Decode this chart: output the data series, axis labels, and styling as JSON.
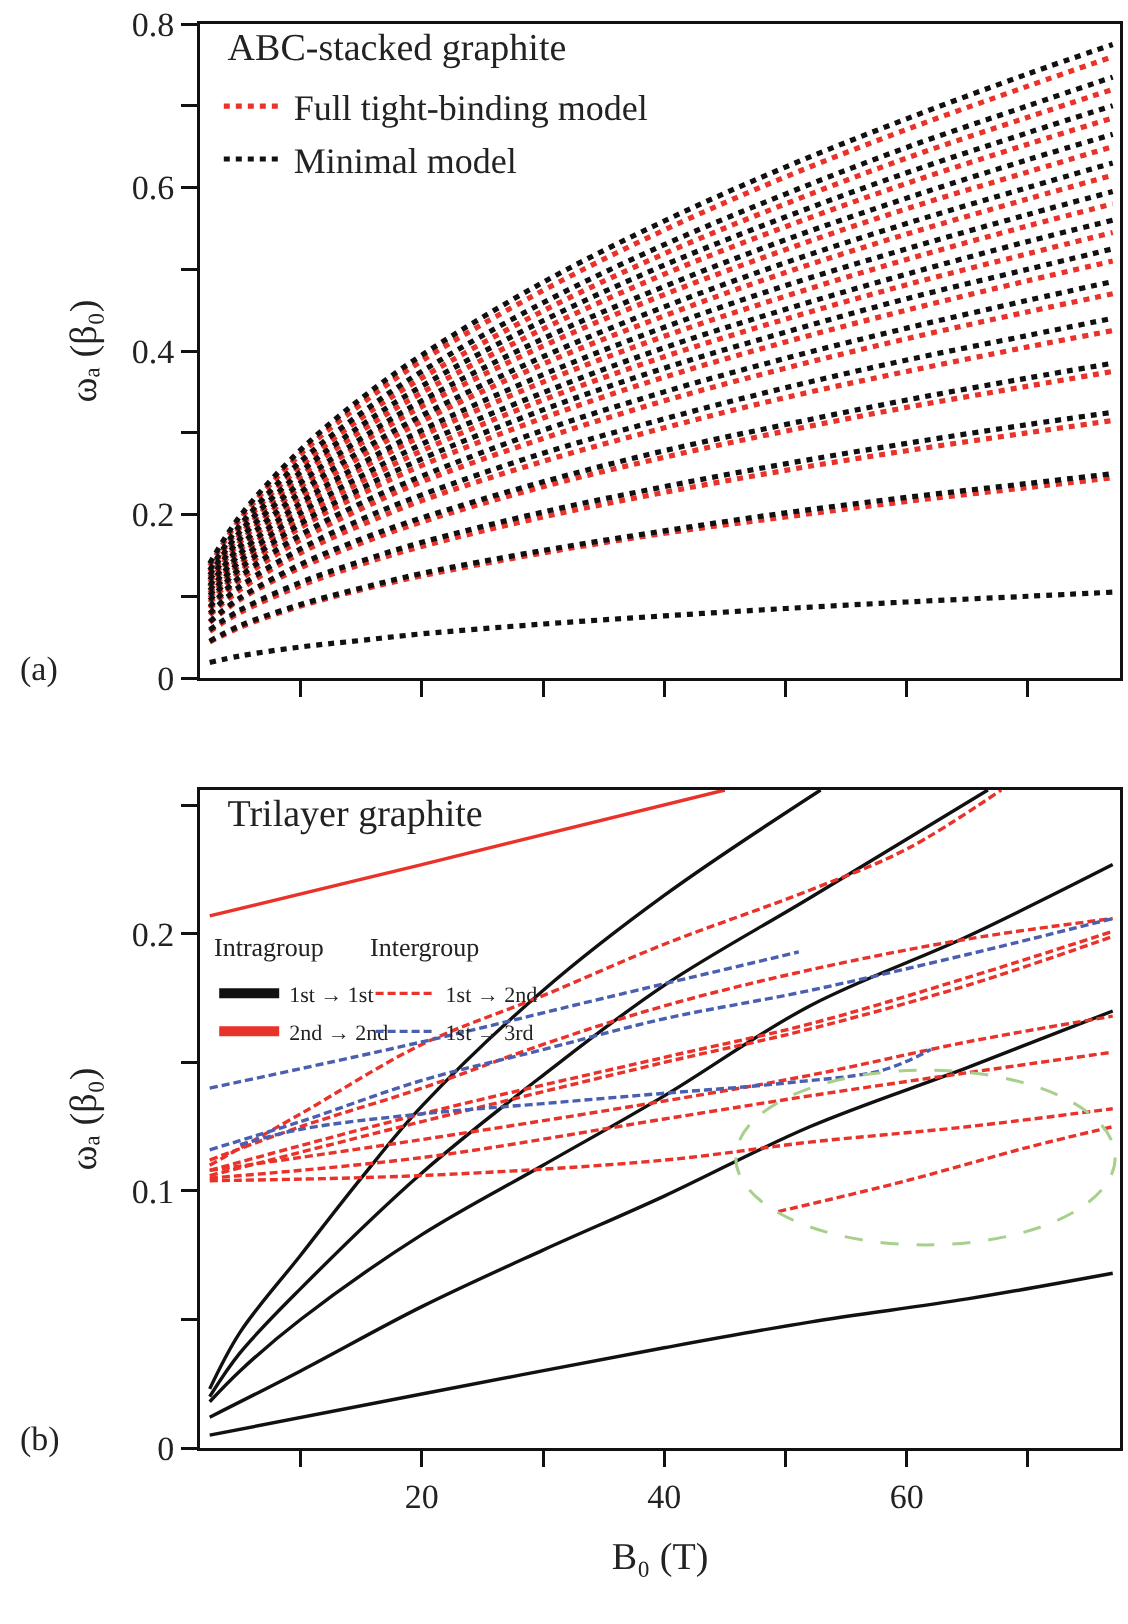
{
  "chart_data": [
    {
      "type": "line",
      "title": "ABC-stacked graphite",
      "ylabel": "ωₐ (β₀)",
      "annotations": [
        "(a)"
      ],
      "line_style": "dotted",
      "legend": "top left",
      "tick_labels": "y",
      "xlim": [
        1.7,
        77.6
      ],
      "xticks": [
        {
          "value": 10,
          "label": null
        },
        {
          "value": 20,
          "label": null
        },
        {
          "value": 30,
          "label": null
        },
        {
          "value": 40,
          "label": null
        },
        {
          "value": 50,
          "label": null
        },
        {
          "value": 60,
          "label": null
        },
        {
          "value": 70,
          "label": null
        }
      ],
      "ylim": [
        0,
        0.8
      ],
      "yticks": [
        0,
        {
          "value": 0.1,
          "label": null
        },
        0.2,
        {
          "value": 0.3,
          "label": null
        },
        0.4,
        {
          "value": 0.5,
          "label": null
        },
        0.6,
        {
          "value": 0.7,
          "label": null
        },
        0.8
      ],
      "x": [
        2.5,
        5,
        10,
        15,
        20,
        30,
        40,
        50,
        60,
        70,
        77
      ],
      "series": [
        {
          "name": "Full tight-binding model",
          "color": "#e8322a",
          "values": [
            0.044,
            0.062,
            0.088,
            0.108,
            0.125,
            0.153,
            0.177,
            0.197,
            0.216,
            0.233,
            0.245
          ]
        },
        {
          "color": "#e8322a",
          "values": [
            0.057,
            0.08,
            0.113,
            0.139,
            0.161,
            0.197,
            0.227,
            0.254,
            0.278,
            0.3,
            0.315
          ]
        },
        {
          "color": "#e8322a",
          "values": [
            0.068,
            0.096,
            0.135,
            0.165,
            0.191,
            0.234,
            0.27,
            0.302,
            0.331,
            0.357,
            0.375
          ]
        },
        {
          "color": "#e8322a",
          "values": [
            0.077,
            0.108,
            0.153,
            0.187,
            0.217,
            0.265,
            0.306,
            0.343,
            0.375,
            0.405,
            0.425
          ]
        },
        {
          "color": "#e8322a",
          "values": [
            0.085,
            0.12,
            0.169,
            0.207,
            0.24,
            0.293,
            0.339,
            0.379,
            0.415,
            0.448,
            0.47
          ]
        },
        {
          "color": "#e8322a",
          "values": [
            0.092,
            0.13,
            0.184,
            0.225,
            0.26,
            0.318,
            0.368,
            0.411,
            0.45,
            0.486,
            0.51
          ]
        },
        {
          "color": "#e8322a",
          "values": [
            0.098,
            0.139,
            0.196,
            0.24,
            0.278,
            0.34,
            0.393,
            0.439,
            0.481,
            0.519,
            0.545
          ]
        },
        {
          "color": "#e8322a",
          "values": [
            0.104,
            0.148,
            0.209,
            0.256,
            0.296,
            0.362,
            0.418,
            0.467,
            0.512,
            0.553,
            0.58
          ]
        },
        {
          "color": "#e8322a",
          "values": [
            0.111,
            0.157,
            0.221,
            0.271,
            0.314,
            0.384,
            0.443,
            0.496,
            0.543,
            0.586,
            0.615
          ]
        },
        {
          "color": "#e8322a",
          "values": [
            0.117,
            0.166,
            0.234,
            0.287,
            0.332,
            0.406,
            0.469,
            0.524,
            0.574,
            0.619,
            0.65
          ]
        },
        {
          "color": "#e8322a",
          "values": [
            0.123,
            0.175,
            0.247,
            0.302,
            0.349,
            0.427,
            0.494,
            0.552,
            0.605,
            0.653,
            0.685
          ]
        },
        {
          "color": "#e8322a",
          "values": [
            0.13,
            0.184,
            0.259,
            0.318,
            0.367,
            0.449,
            0.519,
            0.58,
            0.636,
            0.686,
            0.72
          ]
        },
        {
          "color": "#e8322a",
          "values": [
            0.137,
            0.194,
            0.274,
            0.335,
            0.388,
            0.474,
            0.548,
            0.613,
            0.671,
            0.724,
            0.76
          ]
        },
        {
          "name": "Minimal model",
          "color": "#111111",
          "values": [
            0.019,
            0.027,
            0.038,
            0.046,
            0.054,
            0.066,
            0.076,
            0.085,
            0.093,
            0.1,
            0.105
          ]
        },
        {
          "color": "#111111",
          "values": [
            0.045,
            0.064,
            0.09,
            0.11,
            0.128,
            0.156,
            0.18,
            0.202,
            0.221,
            0.238,
            0.25
          ]
        },
        {
          "color": "#111111",
          "values": [
            0.059,
            0.083,
            0.117,
            0.143,
            0.166,
            0.203,
            0.234,
            0.262,
            0.287,
            0.31,
            0.325
          ]
        },
        {
          "color": "#111111",
          "values": [
            0.069,
            0.098,
            0.139,
            0.17,
            0.196,
            0.24,
            0.278,
            0.31,
            0.34,
            0.367,
            0.385
          ]
        },
        {
          "color": "#111111",
          "values": [
            0.079,
            0.112,
            0.158,
            0.194,
            0.224,
            0.275,
            0.317,
            0.355,
            0.389,
            0.419,
            0.44
          ]
        },
        {
          "color": "#111111",
          "values": [
            0.087,
            0.124,
            0.175,
            0.214,
            0.247,
            0.303,
            0.35,
            0.391,
            0.428,
            0.462,
            0.485
          ]
        },
        {
          "color": "#111111",
          "values": [
            0.095,
            0.134,
            0.189,
            0.232,
            0.268,
            0.328,
            0.379,
            0.423,
            0.464,
            0.5,
            0.525
          ]
        },
        {
          "color": "#111111",
          "values": [
            0.101,
            0.143,
            0.202,
            0.247,
            0.286,
            0.349,
            0.404,
            0.451,
            0.494,
            0.534,
            0.56
          ]
        },
        {
          "color": "#111111",
          "values": [
            0.107,
            0.152,
            0.214,
            0.262,
            0.303,
            0.371,
            0.429,
            0.48,
            0.525,
            0.567,
            0.595
          ]
        },
        {
          "color": "#111111",
          "values": [
            0.113,
            0.161,
            0.227,
            0.278,
            0.321,
            0.393,
            0.454,
            0.508,
            0.556,
            0.6,
            0.63
          ]
        },
        {
          "color": "#111111",
          "values": [
            0.12,
            0.17,
            0.239,
            0.293,
            0.339,
            0.415,
            0.479,
            0.536,
            0.587,
            0.634,
            0.665
          ]
        },
        {
          "color": "#111111",
          "values": [
            0.126,
            0.179,
            0.252,
            0.309,
            0.357,
            0.437,
            0.505,
            0.564,
            0.618,
            0.667,
            0.7
          ]
        },
        {
          "color": "#111111",
          "values": [
            0.132,
            0.187,
            0.265,
            0.324,
            0.375,
            0.459,
            0.53,
            0.592,
            0.649,
            0.7,
            0.735
          ]
        },
        {
          "color": "#111111",
          "values": [
            0.14,
            0.198,
            0.279,
            0.342,
            0.395,
            0.484,
            0.559,
            0.625,
            0.684,
            0.739,
            0.775
          ]
        }
      ]
    },
    {
      "type": "line",
      "title": "Trilayer graphite",
      "xlabel": "B₀ (T)",
      "ylabel": "ωₐ (β₀)",
      "annotations": [
        "(b)",
        "Intragroup",
        "Intergroup"
      ],
      "legend": "top left",
      "xlim": [
        1.7,
        77.6
      ],
      "xticks": [
        {
          "value": 10,
          "label": null
        },
        20,
        {
          "value": 30,
          "label": null
        },
        40,
        {
          "value": 50,
          "label": null
        },
        60,
        {
          "value": 70,
          "label": null
        }
      ],
      "ylim": [
        0,
        0.256
      ],
      "yticks": [
        0,
        {
          "value": 0.05,
          "label": null
        },
        0.1,
        {
          "value": 0.15,
          "label": null
        },
        0.2,
        {
          "value": 0.25,
          "label": null
        }
      ],
      "series": [
        {
          "name": "1st → 1st",
          "color": "#111111",
          "line_style": "solid",
          "x": [
            2.5,
            5,
            10,
            15,
            20,
            30,
            40,
            52.9
          ],
          "values": [
            0.023,
            0.045,
            0.075,
            0.105,
            0.133,
            0.178,
            0.215,
            0.256
          ]
        },
        {
          "color": "#111111",
          "line_style": "solid",
          "x": [
            2.5,
            5,
            10,
            20,
            30,
            40,
            52,
            66.7
          ],
          "values": [
            0.02,
            0.037,
            0.062,
            0.107,
            0.145,
            0.18,
            0.214,
            0.256
          ]
        },
        {
          "color": "#111111",
          "line_style": "solid",
          "x": [
            2.5,
            5,
            10,
            20,
            30,
            40,
            52,
            65,
            77
          ],
          "values": [
            0.018,
            0.03,
            0.05,
            0.083,
            0.11,
            0.137,
            0.172,
            0.199,
            0.227
          ]
        },
        {
          "color": "#111111",
          "line_style": "solid",
          "x": [
            2.5,
            10,
            20,
            30,
            40,
            52,
            65,
            77
          ],
          "values": [
            0.012,
            0.03,
            0.055,
            0.077,
            0.098,
            0.125,
            0.148,
            0.17
          ]
        },
        {
          "color": "#111111",
          "line_style": "solid",
          "x": [
            2.5,
            20,
            40,
            52,
            65,
            77
          ],
          "values": [
            0.005,
            0.021,
            0.039,
            0.049,
            0.058,
            0.068
          ]
        },
        {
          "name": "2nd → 2nd",
          "color": "#e8322a",
          "line_style": "solid",
          "x": [
            2.5,
            20,
            45
          ],
          "values": [
            0.207,
            0.227,
            0.256
          ]
        },
        {
          "name": "1st → 2nd",
          "color": "#e8322a",
          "line_style": "dashed",
          "x": [
            2.5,
            10,
            20,
            30,
            40,
            52,
            60,
            67.8
          ],
          "values": [
            0.11,
            0.13,
            0.157,
            0.176,
            0.196,
            0.217,
            0.233,
            0.256
          ]
        },
        {
          "color": "#e8322a",
          "line_style": "dashed",
          "x": [
            2.5,
            10,
            20,
            30,
            40,
            52,
            65,
            77
          ],
          "values": [
            0.112,
            0.125,
            0.14,
            0.157,
            0.172,
            0.186,
            0.198,
            0.206
          ]
        },
        {
          "color": "#e8322a",
          "line_style": "dashed",
          "x": [
            2.5,
            20,
            40,
            52,
            65,
            77
          ],
          "values": [
            0.108,
            0.13,
            0.152,
            0.165,
            0.183,
            0.201
          ]
        },
        {
          "color": "#e8322a",
          "line_style": "dashed",
          "x": [
            2.5,
            20,
            40,
            52,
            65,
            77
          ],
          "values": [
            0.106,
            0.127,
            0.15,
            0.163,
            0.18,
            0.199
          ]
        },
        {
          "color": "#e8322a",
          "line_style": "dashed",
          "x": [
            2.5,
            20,
            40,
            52,
            65,
            77
          ],
          "values": [
            0.108,
            0.12,
            0.135,
            0.145,
            0.158,
            0.168
          ]
        },
        {
          "color": "#e8322a",
          "line_style": "dashed",
          "x": [
            2.5,
            20,
            40,
            52,
            65,
            77
          ],
          "values": [
            0.105,
            0.113,
            0.128,
            0.137,
            0.146,
            0.154
          ]
        },
        {
          "color": "#e8322a",
          "line_style": "dashed",
          "x": [
            2.5,
            20,
            40,
            52,
            65,
            77
          ],
          "values": [
            0.104,
            0.106,
            0.112,
            0.119,
            0.125,
            0.132
          ]
        },
        {
          "color": "#e8322a",
          "line_style": "dashed",
          "x": [
            49.4,
            60,
            70,
            77
          ],
          "values": [
            0.092,
            0.104,
            0.117,
            0.125
          ]
        },
        {
          "name": "1st → 3rd",
          "color": "#4a5fb0",
          "line_style": "dashed",
          "x": [
            2.5,
            20,
            35,
            51.1
          ],
          "values": [
            0.14,
            0.158,
            0.175,
            0.193
          ]
        },
        {
          "color": "#4a5fb0",
          "line_style": "dashed",
          "x": [
            2.5,
            10,
            20,
            30,
            40,
            52,
            65,
            77
          ],
          "values": [
            0.116,
            0.127,
            0.143,
            0.155,
            0.167,
            0.178,
            0.192,
            0.206
          ]
        },
        {
          "color": "#4a5fb0",
          "line_style": "dashed",
          "x": [
            5,
            10,
            20,
            30,
            40,
            50,
            58,
            62
          ],
          "values": [
            0.118,
            0.124,
            0.13,
            0.134,
            0.138,
            0.142,
            0.147,
            0.155
          ]
        }
      ]
    }
  ]
}
